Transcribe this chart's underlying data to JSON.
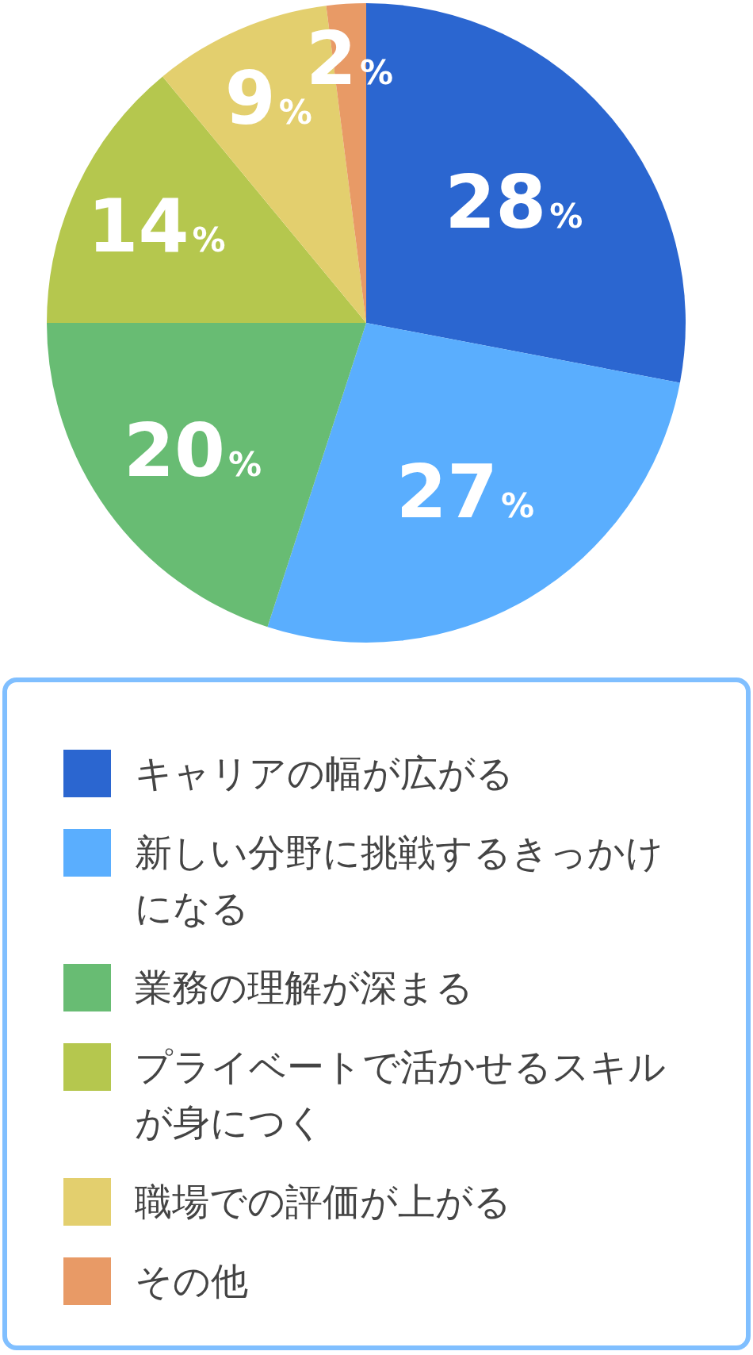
{
  "chart_data": {
    "type": "pie",
    "categories": [
      "キャリアの幅が広がる",
      "新しい分野に挑戦するきっかけになる",
      "業務の理解が深まる",
      "プライベートで活かせるスキルが身につく",
      "職場での評価が上がる",
      "その他"
    ],
    "values": [
      28,
      27,
      20,
      14,
      9,
      2
    ],
    "colors": [
      "#2b66d0",
      "#5aaefe",
      "#68bc73",
      "#b5c74e",
      "#e3cf6e",
      "#e89a66"
    ],
    "value_labels": [
      "28%",
      "27%",
      "20%",
      "14%",
      "9%",
      "2%"
    ],
    "legend": "bottom"
  }
}
